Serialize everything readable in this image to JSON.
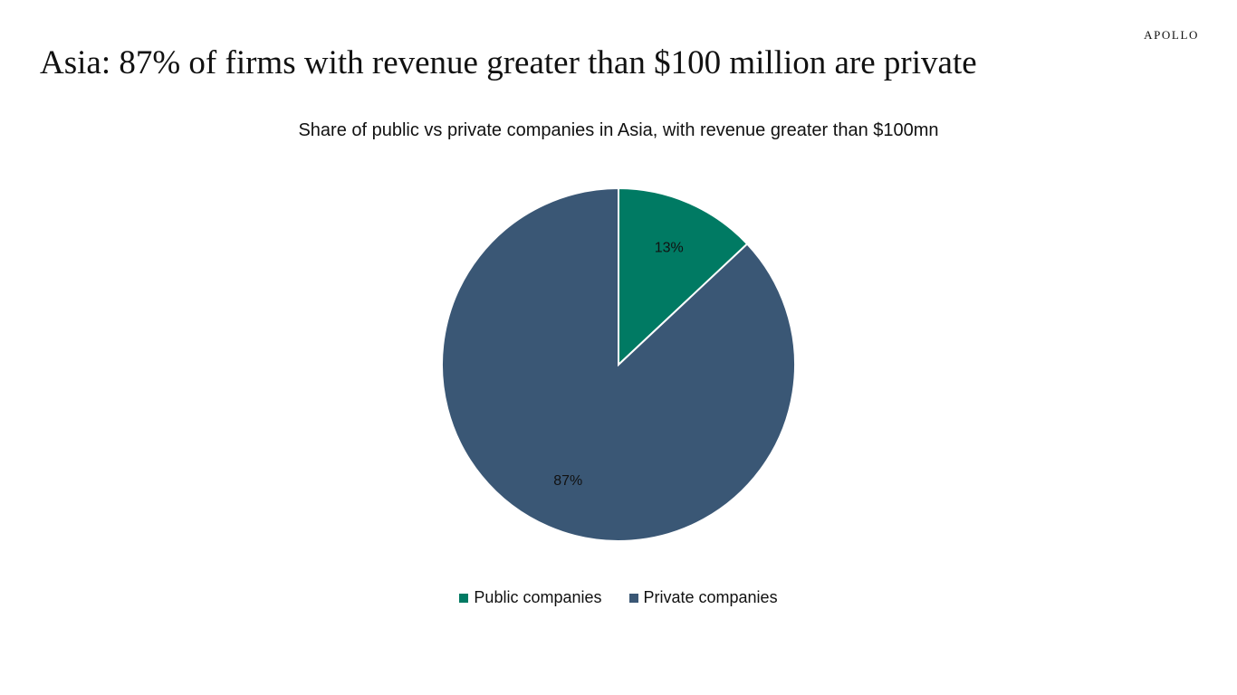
{
  "brand": "APOLLO",
  "headline": "Asia: 87% of firms with revenue greater than $100 million are private",
  "chart_data": {
    "type": "pie",
    "title": "Share of public vs private companies in Asia, with revenue greater than $100mn",
    "categories": [
      "Public companies",
      "Private companies"
    ],
    "values": [
      13,
      87
    ],
    "data_labels": [
      "13%",
      "87%"
    ],
    "colors": [
      "#007A63",
      "#3A5775"
    ],
    "legend_position": "bottom"
  }
}
